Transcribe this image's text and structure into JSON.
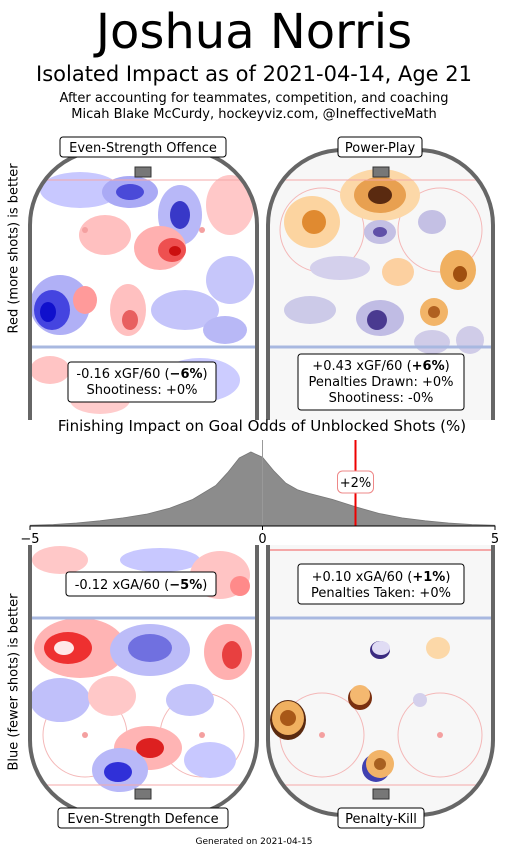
{
  "header": {
    "player_name": "Joshua Norris",
    "subtitle": "Isolated Impact as of 2021-04-14, Age 21",
    "note_line1": "After accounting for teammates, competition, and coaching",
    "note_line2": "Micah Blake McCurdy, hockeyviz.com, @IneffectiveMath"
  },
  "side_labels": {
    "top": "Red (more shots) is better",
    "bottom": "Blue (fewer shots) is better"
  },
  "panels": {
    "es_offence": {
      "title": "Even-Strength Offence",
      "line1_prefix": "-0.16 xGF/60 (",
      "line1_bold": "−6%",
      "line1_suffix": ")",
      "line2": "Shootiness: +0%"
    },
    "power_play": {
      "title": "Power-Play",
      "line1_prefix": "+0.43 xGF/60 (",
      "line1_bold": "+6%",
      "line1_suffix": ")",
      "line2": "Penalties Drawn: +0%",
      "line3": "Shootiness: -0%"
    },
    "es_defence": {
      "title": "Even-Strength Defence",
      "line1_prefix": "-0.12 xGA/60 (",
      "line1_bold": "−5%",
      "line1_suffix": ")"
    },
    "penalty_kill": {
      "title": "Penalty-Kill",
      "line1_prefix": "+0.10 xGA/60 (",
      "line1_bold": "+1%",
      "line1_suffix": ")",
      "line2": "Penalties Taken: +0%"
    }
  },
  "colors": {
    "rink_border": "#666666",
    "red_more": "#ff3333",
    "blue_fewer": "#2222ff",
    "orange": "#e08010",
    "purple": "#5a4aa0",
    "distribution_fill": "#8c8c8c",
    "marker_line": "#ee0000"
  },
  "chart_data": {
    "type": "area",
    "title": "Finishing Impact on Goal Odds of Unblocked Shots (%)",
    "xlim": [
      -5,
      5
    ],
    "x_ticks": [
      -5,
      0,
      5
    ],
    "x_tick_labels": [
      "−5",
      "0",
      "5"
    ],
    "marker": {
      "x": 2,
      "label": "+2%"
    },
    "series": [
      {
        "x": [
          -5,
          -4.5,
          -4,
          -3.5,
          -3,
          -2.5,
          -2,
          -1.5,
          -1,
          -0.75,
          -0.5,
          -0.25,
          0,
          0.25,
          0.5,
          0.75,
          1,
          1.5,
          2,
          2.5,
          3,
          3.5,
          4,
          4.5,
          5
        ],
        "y": [
          0.01,
          0.02,
          0.04,
          0.07,
          0.11,
          0.16,
          0.24,
          0.36,
          0.55,
          0.72,
          0.92,
          1.0,
          0.93,
          0.74,
          0.58,
          0.49,
          0.44,
          0.36,
          0.26,
          0.17,
          0.11,
          0.07,
          0.04,
          0.02,
          0.01
        ]
      }
    ]
  },
  "footer": "Generated on 2021-04-15"
}
